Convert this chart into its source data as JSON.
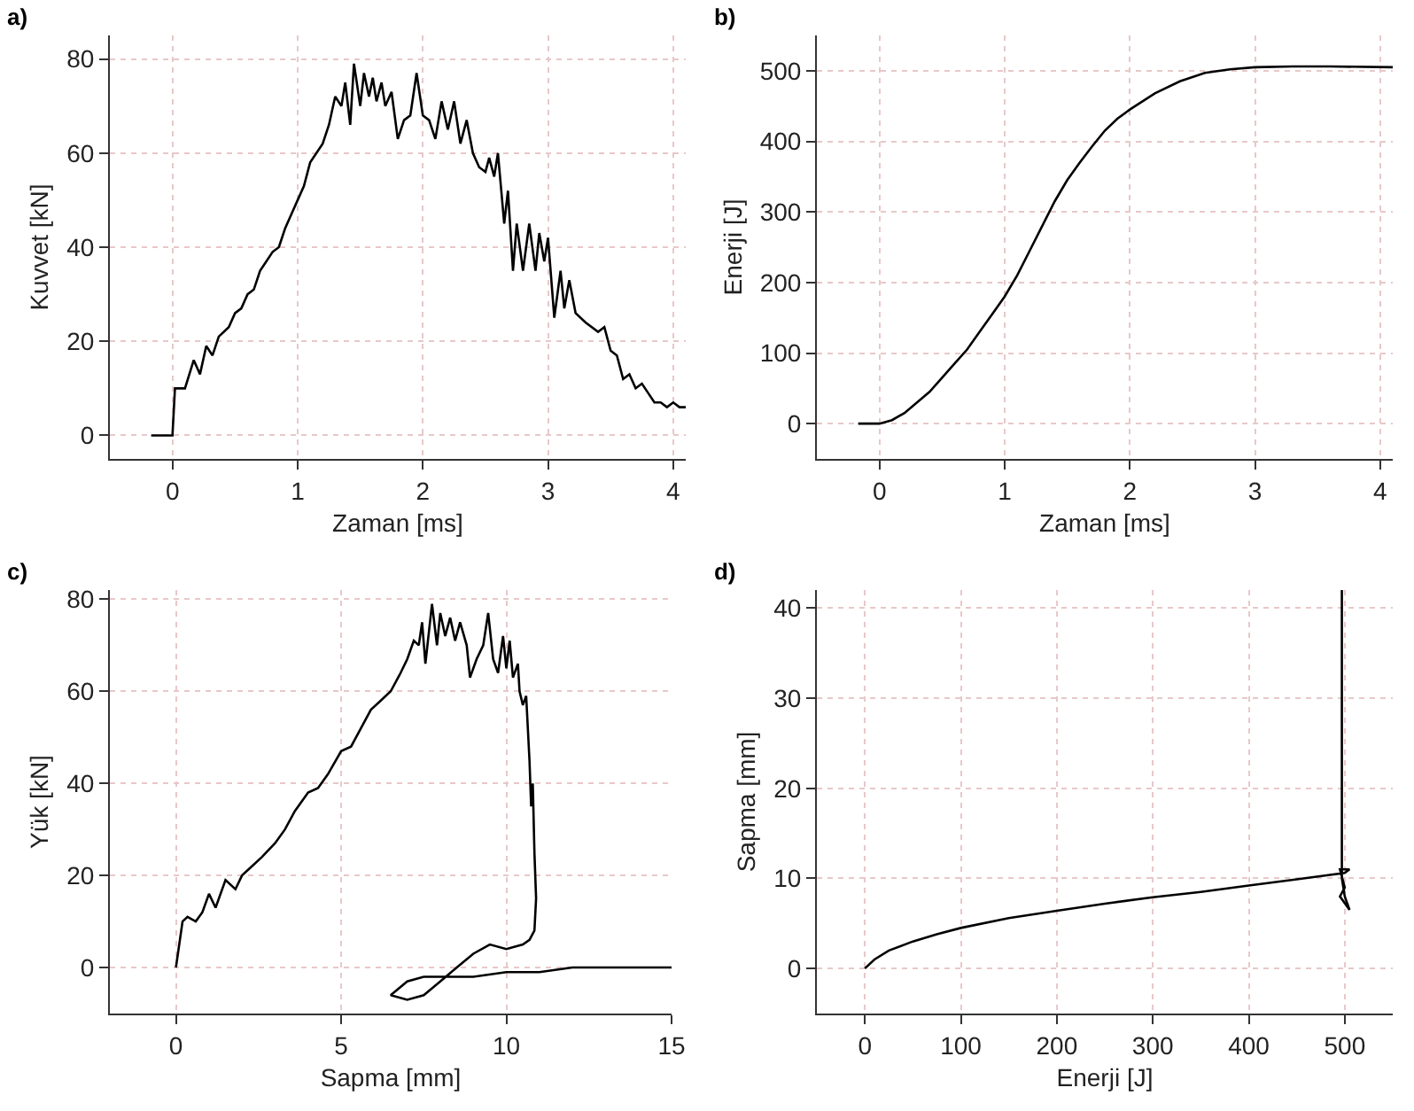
{
  "chart_data": [
    {
      "type": "line",
      "title": "a)",
      "xlabel": "Zaman [ms]",
      "ylabel": "Kuvvet [kN]",
      "xlim": [
        -0.5,
        4.1
      ],
      "ylim": [
        -5,
        85
      ],
      "xticks": [
        0,
        1,
        2,
        3,
        4
      ],
      "yticks": [
        0,
        20,
        40,
        60,
        80
      ],
      "grid": true,
      "series": [
        {
          "color": "#000000",
          "x": [
            -0.17,
            0,
            0.02,
            0.1,
            0.17,
            0.22,
            0.27,
            0.32,
            0.37,
            0.45,
            0.5,
            0.55,
            0.6,
            0.65,
            0.7,
            0.75,
            0.8,
            0.85,
            0.9,
            0.95,
            1.0,
            1.05,
            1.1,
            1.15,
            1.2,
            1.25,
            1.3,
            1.35,
            1.38,
            1.42,
            1.45,
            1.5,
            1.53,
            1.57,
            1.6,
            1.63,
            1.67,
            1.7,
            1.75,
            1.8,
            1.85,
            1.9,
            1.95,
            2.0,
            2.05,
            2.1,
            2.15,
            2.2,
            2.25,
            2.3,
            2.35,
            2.4,
            2.45,
            2.5,
            2.53,
            2.57,
            2.6,
            2.65,
            2.68,
            2.72,
            2.75,
            2.8,
            2.85,
            2.9,
            2.93,
            2.97,
            3.0,
            3.05,
            3.1,
            3.13,
            3.17,
            3.22,
            3.3,
            3.4,
            3.45,
            3.5,
            3.55,
            3.6,
            3.65,
            3.7,
            3.75,
            3.8,
            3.85,
            3.9,
            3.95,
            4.0,
            4.05,
            4.1
          ],
          "values": [
            0,
            0,
            10,
            10,
            16,
            13,
            19,
            17,
            21,
            23,
            26,
            27,
            30,
            31,
            35,
            37,
            39,
            40,
            44,
            47,
            50,
            53,
            58,
            60,
            62,
            66,
            72,
            70,
            75,
            66,
            79,
            70,
            77,
            72,
            76,
            71,
            75,
            70,
            73,
            63,
            67,
            68,
            77,
            68,
            67,
            63,
            71,
            65,
            71,
            62,
            67,
            60,
            57,
            56,
            59,
            55,
            60,
            45,
            52,
            35,
            45,
            35,
            45,
            35,
            43,
            37,
            42,
            25,
            35,
            27,
            33,
            26,
            24,
            22,
            23,
            18,
            17,
            12,
            13,
            10,
            11,
            9,
            7,
            7,
            6,
            7,
            6,
            6
          ]
        }
      ]
    },
    {
      "type": "line",
      "title": "b)",
      "xlabel": "Zaman [ms]",
      "ylabel": "Enerji [J]",
      "xlim": [
        -0.5,
        4.1
      ],
      "ylim": [
        -50,
        550
      ],
      "xticks": [
        0,
        1,
        2,
        3,
        4
      ],
      "yticks": [
        0,
        100,
        200,
        300,
        400,
        500
      ],
      "grid": true,
      "series": [
        {
          "color": "#000000",
          "x": [
            -0.17,
            0,
            0.1,
            0.2,
            0.3,
            0.4,
            0.5,
            0.6,
            0.7,
            0.8,
            0.9,
            1.0,
            1.1,
            1.2,
            1.3,
            1.4,
            1.5,
            1.6,
            1.7,
            1.8,
            1.9,
            2.0,
            2.2,
            2.4,
            2.6,
            2.8,
            3.0,
            3.3,
            3.6,
            4.1
          ],
          "values": [
            0,
            0,
            5,
            15,
            30,
            45,
            65,
            85,
            105,
            130,
            155,
            180,
            210,
            245,
            280,
            315,
            345,
            370,
            393,
            415,
            432,
            445,
            468,
            485,
            497,
            502,
            505,
            506,
            506,
            505
          ]
        }
      ]
    },
    {
      "type": "line",
      "title": "c)",
      "xlabel": "Sapma [mm]",
      "ylabel": "Yük [kN]",
      "xlim": [
        -2,
        15
      ],
      "ylim": [
        -10,
        82
      ],
      "xticks": [
        0,
        5,
        10,
        15
      ],
      "yticks": [
        0,
        20,
        40,
        60,
        80
      ],
      "grid": true,
      "series": [
        {
          "color": "#000000",
          "x": [
            0,
            0.2,
            0.35,
            0.6,
            0.8,
            1.0,
            1.2,
            1.5,
            1.8,
            2.0,
            2.3,
            2.6,
            3.0,
            3.3,
            3.6,
            4.0,
            4.3,
            4.6,
            5.0,
            5.3,
            5.6,
            5.9,
            6.2,
            6.5,
            6.8,
            7.0,
            7.2,
            7.35,
            7.45,
            7.55,
            7.75,
            7.9,
            8.0,
            8.15,
            8.3,
            8.45,
            8.6,
            8.8,
            8.9,
            9.1,
            9.3,
            9.45,
            9.6,
            9.75,
            9.9,
            10.0,
            10.1,
            10.2,
            10.35,
            10.4,
            10.5,
            10.6,
            10.7,
            10.75,
            10.8,
            10.85,
            10.9,
            10.85,
            10.7,
            10.5,
            10.0,
            9.5,
            9.0,
            8.5,
            8.0,
            7.5,
            7.0,
            6.5,
            7.0,
            7.5,
            8.0,
            9.0,
            10.0,
            11.0,
            12.0,
            13.0,
            14.0,
            15.0
          ],
          "values": [
            0,
            10,
            11,
            10,
            12,
            16,
            13,
            19,
            17,
            20,
            22,
            24,
            27,
            30,
            34,
            38,
            39,
            42,
            47,
            48,
            52,
            56,
            58,
            60,
            64,
            67,
            71,
            70,
            75,
            66,
            79,
            70,
            77,
            72,
            76,
            71,
            75,
            70,
            63,
            67,
            70,
            77,
            67,
            64,
            72,
            65,
            71,
            63,
            66,
            60,
            57,
            59,
            45,
            35,
            40,
            25,
            15,
            8,
            6,
            5,
            4,
            5,
            3,
            0,
            -3,
            -6,
            -7,
            -6,
            -3,
            -2,
            -2,
            -2,
            -1,
            -1,
            0,
            0,
            0,
            0
          ]
        }
      ]
    },
    {
      "type": "line",
      "title": "d)",
      "xlabel": "Enerji [J]",
      "ylabel": "Sapma [mm]",
      "xlim": [
        -50,
        550
      ],
      "ylim": [
        -5,
        42
      ],
      "xticks": [
        0,
        100,
        200,
        300,
        400,
        500
      ],
      "yticks": [
        0,
        10,
        20,
        30,
        40
      ],
      "grid": true,
      "series": [
        {
          "color": "#000000",
          "x": [
            0,
            10,
            25,
            50,
            75,
            100,
            150,
            200,
            250,
            300,
            350,
            400,
            450,
            500,
            505,
            495,
            500,
            495,
            505,
            500,
            497,
            497
          ],
          "values": [
            0,
            1,
            2,
            3,
            3.8,
            4.5,
            5.6,
            6.4,
            7.2,
            7.9,
            8.5,
            9.2,
            9.9,
            10.6,
            11,
            11,
            9,
            8,
            6.5,
            8,
            10,
            42
          ]
        }
      ]
    }
  ]
}
